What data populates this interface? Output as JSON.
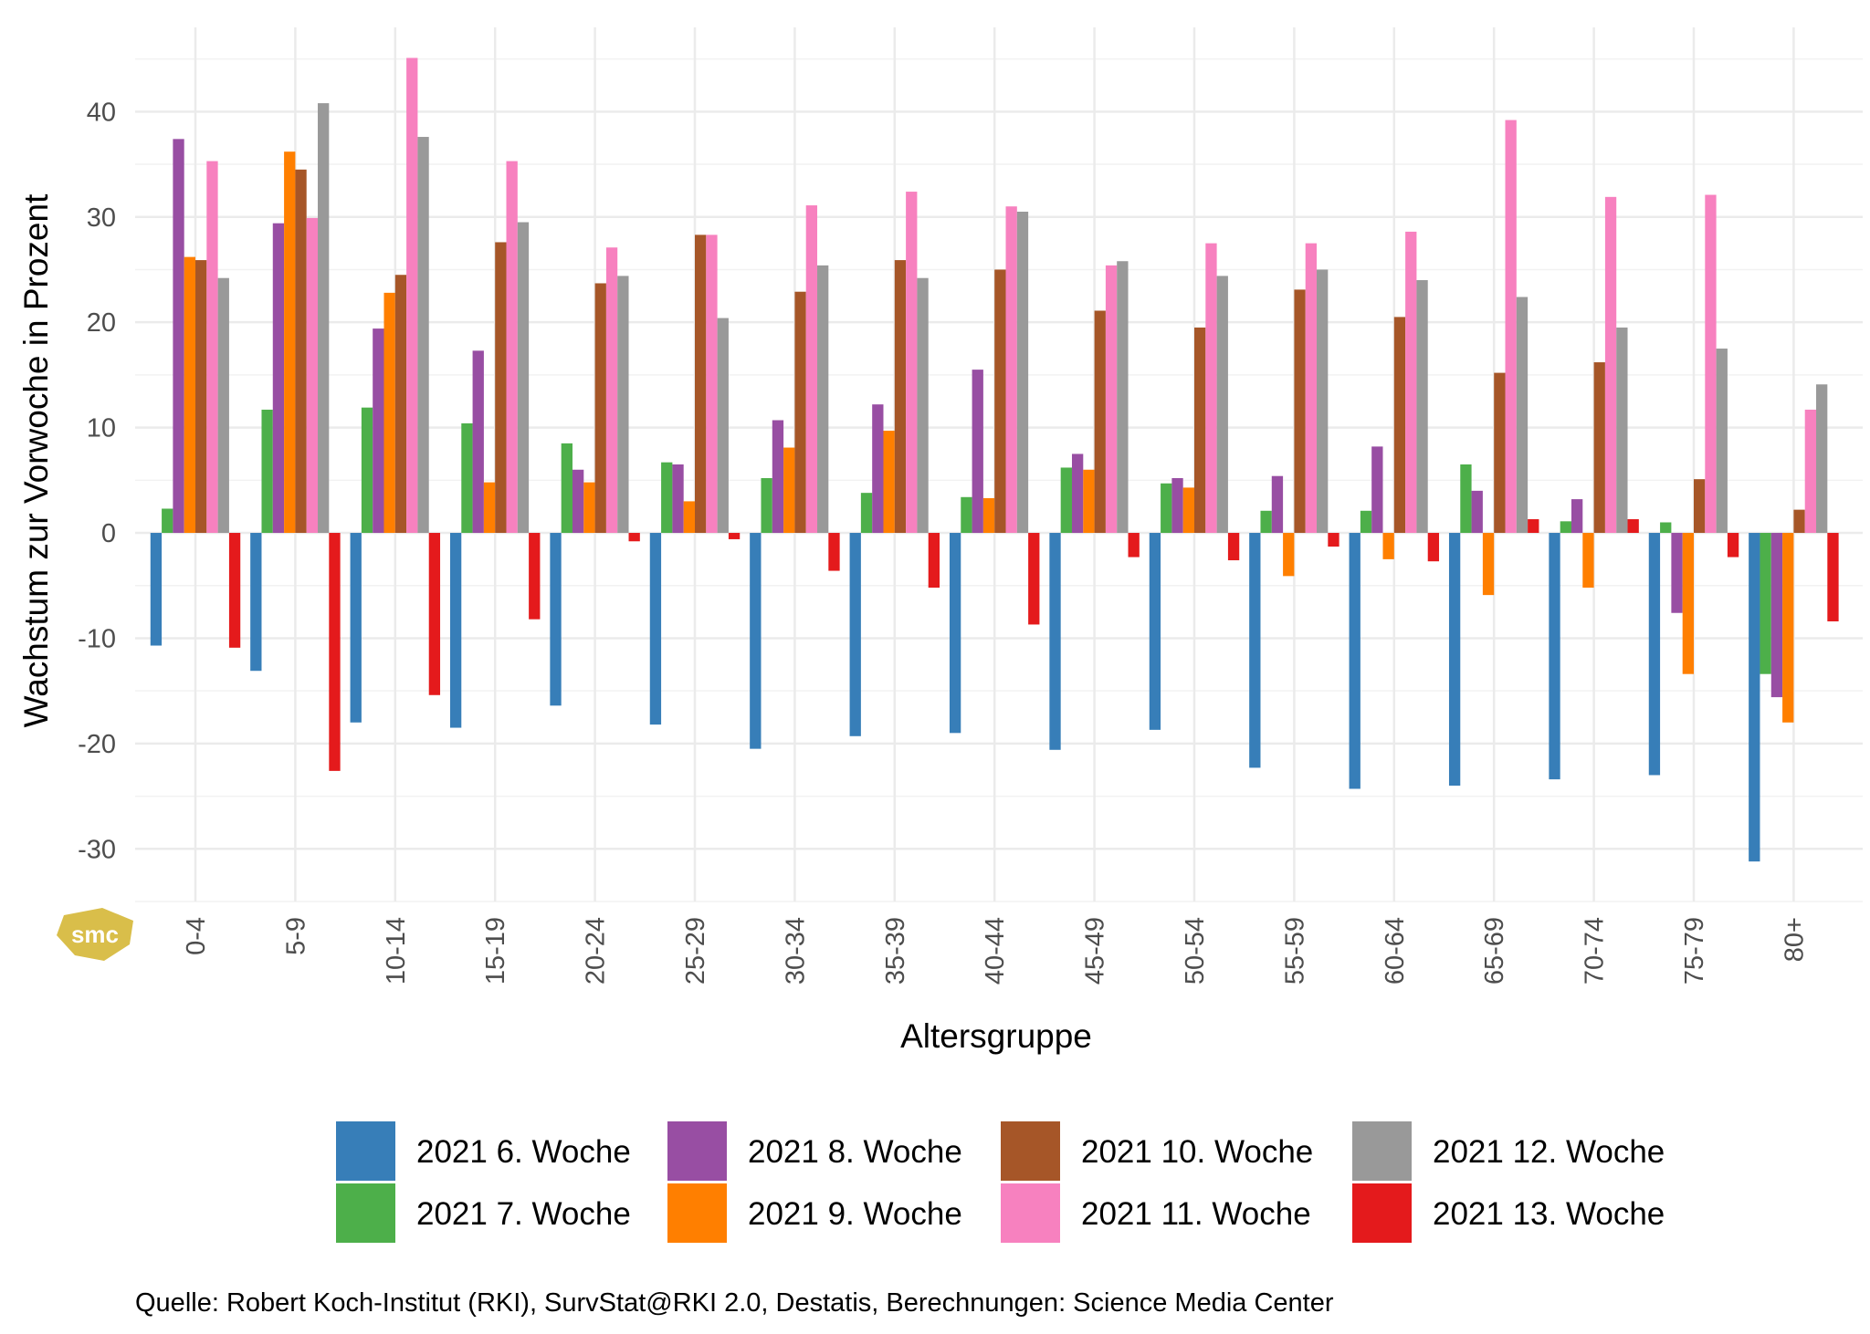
{
  "chart_data": {
    "type": "bar",
    "title": "",
    "xlabel": "Altersgruppe",
    "ylabel": "Wachstum zur Vorwoche in Prozent",
    "ylim": [
      -35,
      48
    ],
    "yticks": [
      -30,
      -20,
      -10,
      0,
      10,
      20,
      30,
      40
    ],
    "grid": true,
    "legend_position": "bottom",
    "categories": [
      "0-4",
      "5-9",
      "10-14",
      "15-19",
      "20-24",
      "25-29",
      "30-34",
      "35-39",
      "40-44",
      "45-49",
      "50-54",
      "55-59",
      "60-64",
      "65-69",
      "70-74",
      "75-79",
      "80+"
    ],
    "series": [
      {
        "name": "2021 6. Woche",
        "color": "#377EB8",
        "values": [
          -10.7,
          -13.1,
          -18.0,
          -18.5,
          -16.4,
          -18.2,
          -20.5,
          -19.3,
          -19.0,
          -20.6,
          -18.7,
          -22.3,
          -24.3,
          -24.0,
          -23.4,
          -23.0,
          -31.2
        ]
      },
      {
        "name": "2021 7. Woche",
        "color": "#4DAF4A",
        "values": [
          2.3,
          11.7,
          11.9,
          10.4,
          8.5,
          6.7,
          5.2,
          3.8,
          3.4,
          6.2,
          4.7,
          2.1,
          2.1,
          6.5,
          1.1,
          1.0,
          -13.4
        ]
      },
      {
        "name": "2021 8. Woche",
        "color": "#984EA3",
        "values": [
          37.4,
          29.4,
          19.4,
          17.3,
          6.0,
          6.5,
          10.7,
          12.2,
          15.5,
          7.5,
          5.2,
          5.4,
          8.2,
          4.0,
          3.2,
          -7.6,
          -15.6
        ]
      },
      {
        "name": "2021 9. Woche",
        "color": "#FF7F00",
        "values": [
          26.2,
          36.2,
          22.8,
          4.8,
          4.8,
          3.0,
          8.1,
          9.7,
          3.3,
          6.0,
          4.3,
          -4.1,
          -2.5,
          -5.9,
          -5.2,
          -13.4,
          -18.0
        ]
      },
      {
        "name": "2021 10. Woche",
        "color": "#A65628",
        "values": [
          25.9,
          34.5,
          24.5,
          27.6,
          23.7,
          28.3,
          22.9,
          25.9,
          25.0,
          21.1,
          19.5,
          23.1,
          20.5,
          15.2,
          16.2,
          5.1,
          2.2
        ]
      },
      {
        "name": "2021 11. Woche",
        "color": "#F781BF",
        "values": [
          35.3,
          29.9,
          45.1,
          35.3,
          27.1,
          28.3,
          31.1,
          32.4,
          31.0,
          25.4,
          27.5,
          27.5,
          28.6,
          39.2,
          31.9,
          32.1,
          11.7
        ]
      },
      {
        "name": "2021 12. Woche",
        "color": "#999999",
        "values": [
          24.2,
          40.8,
          37.6,
          29.5,
          24.4,
          20.4,
          25.4,
          24.2,
          30.5,
          25.8,
          24.4,
          25.0,
          24.0,
          22.4,
          19.5,
          17.5,
          14.1
        ]
      },
      {
        "name": "2021 13. Woche",
        "color": "#E41A1C",
        "values": [
          -10.9,
          -22.6,
          -15.4,
          -8.2,
          -0.8,
          -0.6,
          -3.6,
          -5.2,
          -8.7,
          -2.3,
          -2.6,
          -1.3,
          -2.7,
          1.3,
          1.3,
          -2.3,
          -8.4
        ]
      }
    ],
    "caption": "Quelle: Robert Koch-Institut (RKI), SurvStat@RKI 2.0, Destatis, Berechnungen: Science Media Center",
    "logo_text": "smc",
    "logo_color": "#D9BE4A"
  }
}
